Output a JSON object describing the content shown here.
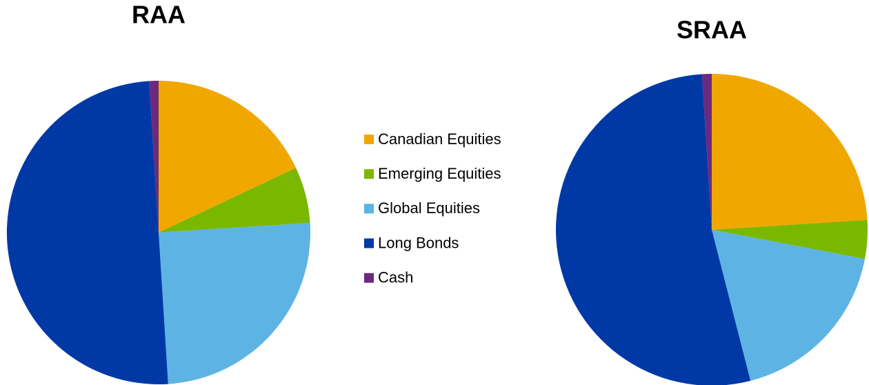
{
  "chart_data": [
    {
      "type": "pie",
      "title": "RAA",
      "categories": [
        "Canadian Equities",
        "Emerging Equities",
        "Global Equities",
        "Long Bonds",
        "Cash"
      ],
      "values": [
        18,
        6,
        25,
        50,
        1
      ],
      "colors": [
        "#f0a800",
        "#7ab800",
        "#5db4e4",
        "#0039a6",
        "#6b2a7e"
      ],
      "legend": "center"
    },
    {
      "type": "pie",
      "title": "SRAA",
      "categories": [
        "Canadian Equities",
        "Emerging Equities",
        "Global Equities",
        "Long Bonds",
        "Cash"
      ],
      "values": [
        24,
        4,
        18,
        53,
        1
      ],
      "colors": [
        "#f0a800",
        "#7ab800",
        "#5db4e4",
        "#0039a6",
        "#6b2a7e"
      ]
    }
  ]
}
